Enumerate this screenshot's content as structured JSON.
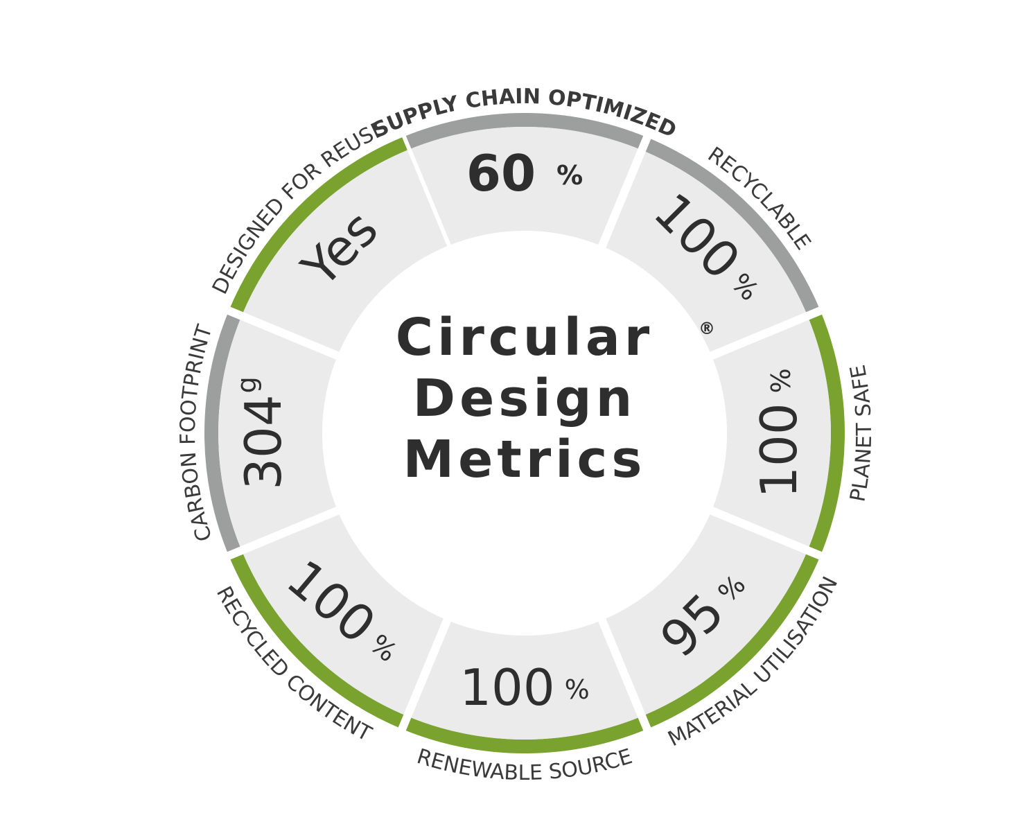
{
  "title": {
    "lines": [
      "Circular",
      "Design",
      "Metrics"
    ],
    "mark": "®"
  },
  "segments": [
    {
      "label": "SUPPLY CHAIN OPTIMIZED",
      "value": 60,
      "unit": "%",
      "color": "#9d9e9e"
    },
    {
      "label": "RECYCLABLE",
      "value": 100,
      "unit": "%",
      "color": "#9d9e9e"
    },
    {
      "label": "PLANET SAFE",
      "value": 100,
      "unit": "%",
      "color": "#79a22e"
    },
    {
      "label": "MATERIAL UTILISATION",
      "value": 95,
      "unit": "%",
      "color": "#79a22e"
    },
    {
      "label": "RENEWABLE SOURCE",
      "value": 100,
      "unit": "%",
      "color": "#79a22e"
    },
    {
      "label": "RECYCLED CONTENT",
      "value": 100,
      "unit": "%",
      "color": "#79a22e"
    },
    {
      "label": "CARBON FOOTPRINT",
      "value": 304,
      "unit": "g",
      "color": "#9d9e9e"
    },
    {
      "label": "DESIGNED FOR REUSE",
      "value": "Yes",
      "color": "#79a22e"
    }
  ]
}
